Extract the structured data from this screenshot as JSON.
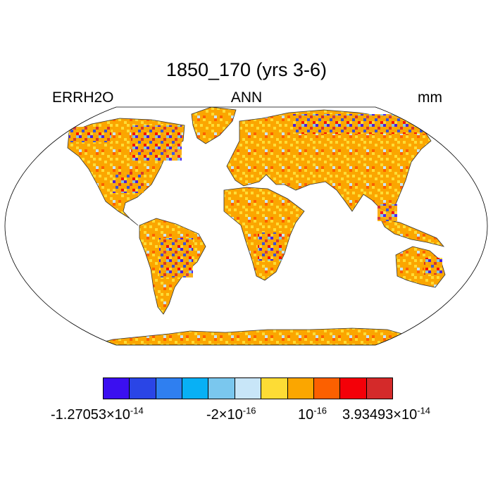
{
  "title": "1850_170 (yrs 3-6)",
  "left_label": "ERRH2O",
  "center_label": "ANN",
  "right_label": "mm",
  "colorbar": {
    "colors": [
      "#3b0ff0",
      "#2a45e6",
      "#2f7ff0",
      "#08b0f5",
      "#7ac7ee",
      "#c8e6f8",
      "#fddc35",
      "#fba600",
      "#fc6000",
      "#f40008",
      "#d42a2a"
    ],
    "labels": [
      {
        "mantissa": "-1.27053",
        "times": "×",
        "base": "10",
        "exp": "-14"
      },
      {
        "mantissa": "-2",
        "times": "×",
        "base": "10",
        "exp": "-16"
      },
      {
        "mantissa": "",
        "times": "",
        "base": "10",
        "exp": "-16"
      },
      {
        "mantissa": "3.93493",
        "times": "×",
        "base": "10",
        "exp": "-14"
      }
    ]
  }
}
